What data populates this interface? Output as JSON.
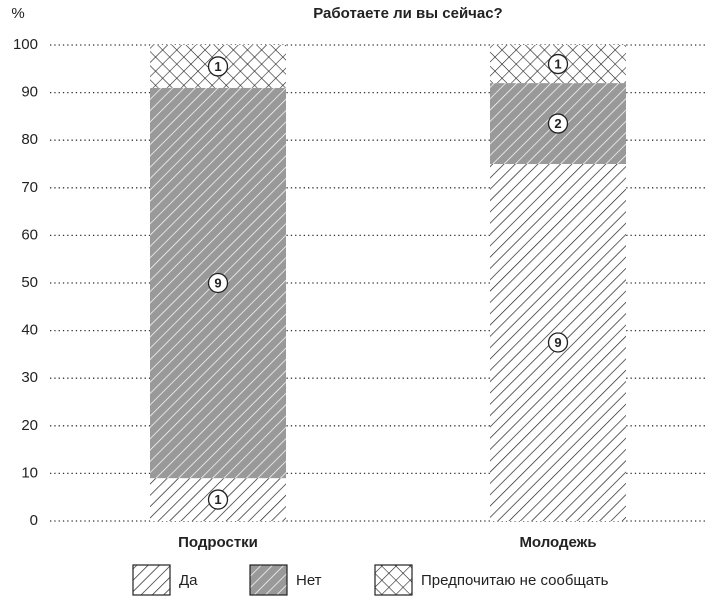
{
  "chart_data": {
    "type": "stacked-bar",
    "title": "Работаете ли вы сейчас?",
    "y_label": "%",
    "categories": [
      "Подростки",
      "Молодежь"
    ],
    "series": [
      {
        "name": "Да",
        "color": "#ffffff",
        "pattern": "hatch",
        "values": [
          9,
          75
        ],
        "counts": [
          1,
          9
        ]
      },
      {
        "name": "Нет",
        "color": "#999999",
        "pattern": "hatch-gray",
        "values": [
          82,
          17
        ],
        "counts": [
          9,
          2
        ]
      },
      {
        "name": "Предпочитаю не сообщать",
        "color": "#ffffff",
        "pattern": "cross",
        "values": [
          9,
          8
        ],
        "counts": [
          1,
          1
        ]
      }
    ],
    "ylim": [
      0,
      100
    ],
    "yticks": [
      0,
      10,
      20,
      30,
      40,
      50,
      60,
      70,
      80,
      90,
      100
    ],
    "grid": true,
    "legend": "bottom"
  }
}
